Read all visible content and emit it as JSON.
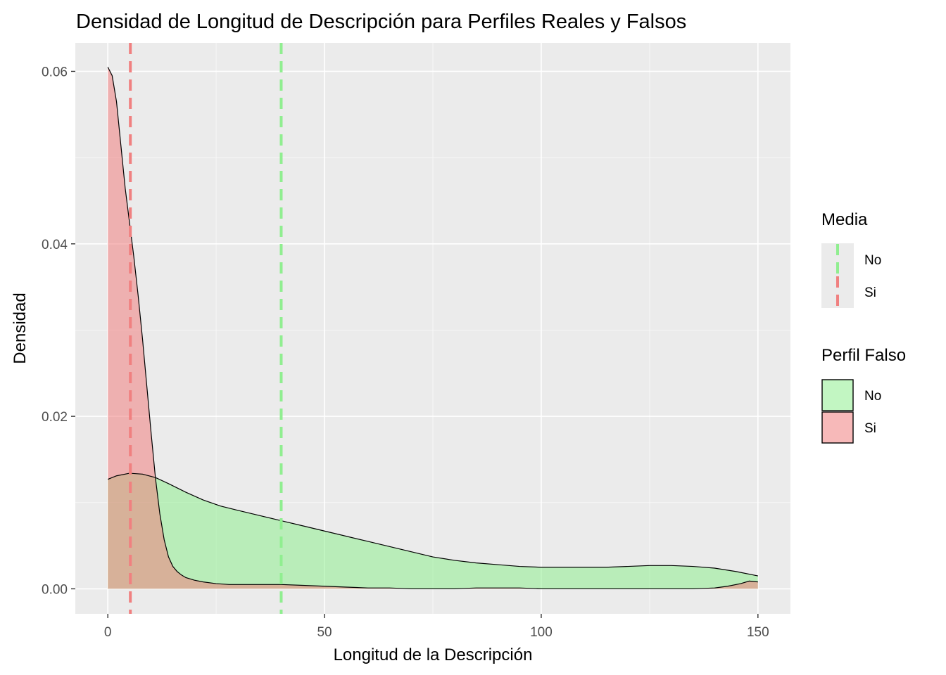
{
  "chart_data": {
    "type": "area",
    "title": "Densidad de Longitud de Descripción para Perfiles Reales y Falsos",
    "xlabel": "Longitud de la Descripción",
    "ylabel": "Densidad",
    "xlim": [
      -7.5,
      157.5
    ],
    "ylim": [
      -0.0029,
      0.0633
    ],
    "x_ticks": [
      0,
      50,
      100,
      150
    ],
    "x_tick_labels": [
      "0",
      "50",
      "100",
      "150"
    ],
    "y_ticks": [
      0.0,
      0.02,
      0.04,
      0.06
    ],
    "y_tick_labels": [
      "0.00",
      "0.02",
      "0.04",
      "0.06"
    ],
    "grid": true,
    "series": [
      {
        "name": "No",
        "color": "#90EE90",
        "x": [
          0,
          2,
          5,
          8,
          11,
          14,
          18,
          22,
          26,
          30,
          35,
          40,
          45,
          50,
          55,
          60,
          65,
          70,
          75,
          80,
          85,
          90,
          95,
          100,
          105,
          110,
          115,
          120,
          125,
          130,
          135,
          140,
          145,
          150
        ],
        "values": [
          0.0127,
          0.0131,
          0.0134,
          0.0133,
          0.0129,
          0.0122,
          0.0112,
          0.0103,
          0.0096,
          0.0091,
          0.0085,
          0.0079,
          0.0073,
          0.0067,
          0.0061,
          0.0055,
          0.0049,
          0.0043,
          0.0037,
          0.0033,
          0.003,
          0.0028,
          0.0026,
          0.0025,
          0.0025,
          0.0025,
          0.0025,
          0.0026,
          0.0027,
          0.0027,
          0.0026,
          0.0024,
          0.002,
          0.0015
        ]
      },
      {
        "name": "Si",
        "color": "#F08080",
        "x": [
          0,
          1,
          2,
          3,
          4,
          5,
          6,
          7,
          8,
          9,
          10,
          11,
          12,
          13,
          14,
          15,
          16,
          17,
          18,
          20,
          22,
          25,
          28,
          30,
          35,
          40,
          45,
          50,
          55,
          60,
          65,
          70,
          75,
          80,
          85,
          90,
          95,
          100,
          105,
          110,
          115,
          120,
          125,
          130,
          135,
          140,
          143,
          146,
          148,
          150
        ],
        "values": [
          0.0605,
          0.0595,
          0.0565,
          0.0515,
          0.0465,
          0.0425,
          0.0385,
          0.034,
          0.029,
          0.0235,
          0.018,
          0.0128,
          0.0087,
          0.0057,
          0.0037,
          0.0026,
          0.002,
          0.0016,
          0.0013,
          0.001,
          0.0008,
          0.0006,
          0.0005,
          0.0005,
          0.0005,
          0.0005,
          0.0004,
          0.0003,
          0.0002,
          0.0001,
          0.0001,
          0.0,
          0.0,
          0.0,
          0.0001,
          0.0001,
          0.0001,
          0.0,
          0.0,
          0.0,
          0.0,
          0.0,
          0.0,
          0.0,
          0.0,
          0.0001,
          0.0003,
          0.0006,
          0.0009,
          0.0008
        ]
      }
    ],
    "mean_lines": [
      {
        "name": "No",
        "x": 40,
        "color": "#90EE90"
      },
      {
        "name": "Si",
        "x": 5.2,
        "color": "#F08080"
      }
    ],
    "legends": [
      {
        "title": "Media",
        "entries": [
          "No",
          "Si"
        ],
        "colors": [
          "#90EE90",
          "#F08080"
        ],
        "kind": "line"
      },
      {
        "title": "Perfil Falso",
        "entries": [
          "No",
          "Si"
        ],
        "colors": [
          "#90EE90",
          "#F08080"
        ],
        "kind": "fill"
      }
    ],
    "legend_position": "right"
  }
}
